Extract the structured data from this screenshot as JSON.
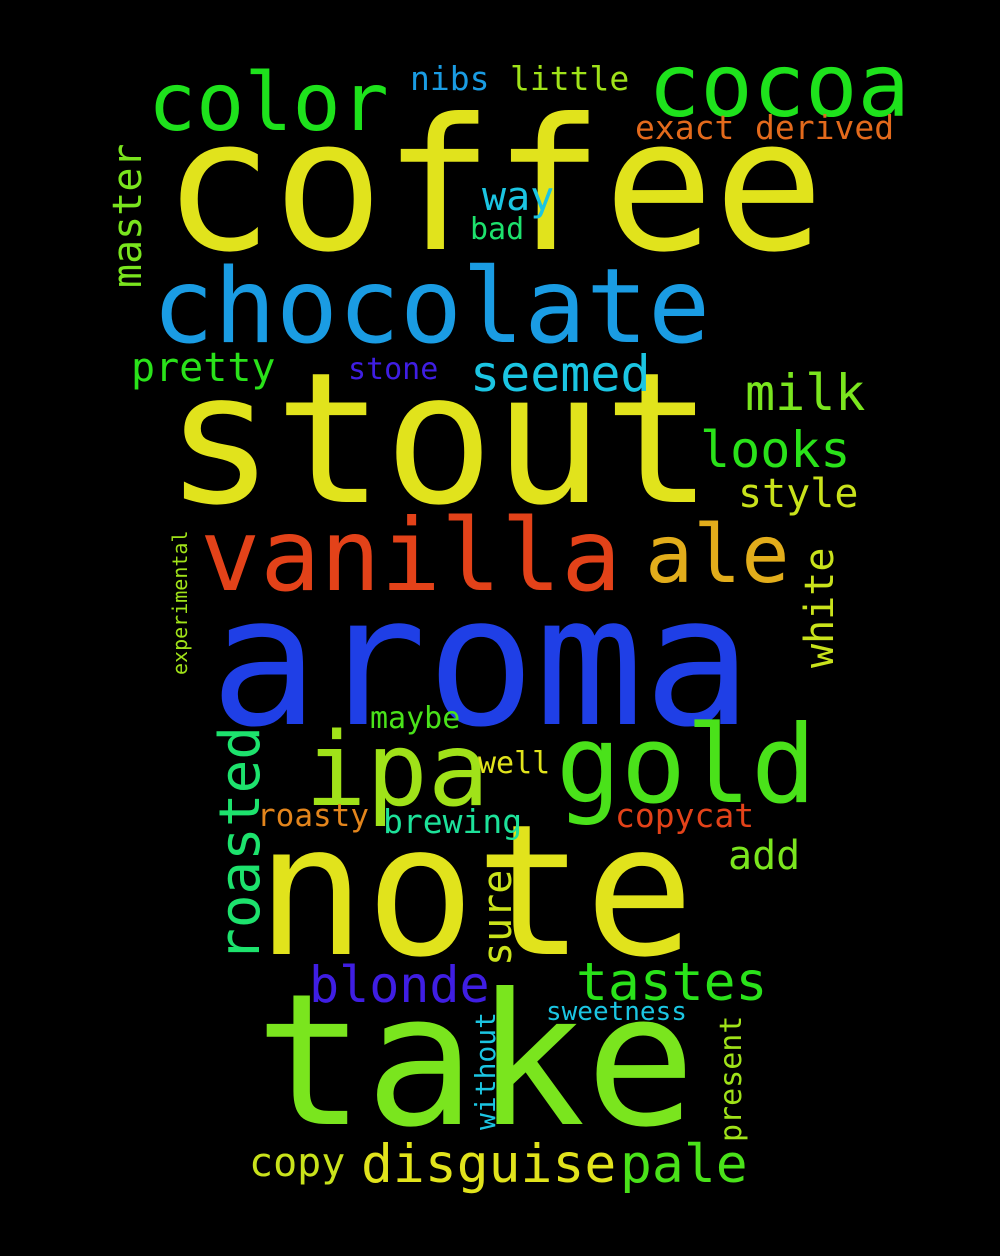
{
  "words": {
    "coffee": "coffee",
    "stout": "stout",
    "aroma": "aroma",
    "note": "note",
    "take": "take",
    "chocolate": "chocolate",
    "vanilla": "vanilla",
    "cocoa": "cocoa",
    "color": "color",
    "ipa": "ipa",
    "gold": "gold",
    "ale": "ale",
    "roasted": "roasted",
    "disguise": "disguise",
    "pale": "pale",
    "tastes": "tastes",
    "blonde": "blonde",
    "seemed": "seemed",
    "milk": "milk",
    "looks": "looks",
    "master": "master",
    "white": "white",
    "sure": "sure",
    "style": "style",
    "pretty": "pretty",
    "add": "add",
    "copy": "copy",
    "way": "way",
    "copycat": "copycat",
    "little": "little",
    "derived": "derived",
    "exact": "exact",
    "nibs": "nibs",
    "brewing": "brewing",
    "roasty": "roasty",
    "present": "present",
    "maybe": "maybe",
    "well": "well",
    "stone": "stone",
    "bad": "bad",
    "without": "without",
    "sweetness": "sweetness",
    "experimental": "experimental"
  },
  "colors": {
    "background": "#000000",
    "yellow": "#e1e31c",
    "blue": "#1f3fe6",
    "light_blue": "#1a9ce3",
    "red_orange": "#e34219",
    "green": "#1ee21c",
    "lime": "#7ae51e",
    "purple": "#3f1ee3",
    "cyan": "#1bc5e2",
    "orange": "#e3851c",
    "amber": "#e2ad1b"
  }
}
